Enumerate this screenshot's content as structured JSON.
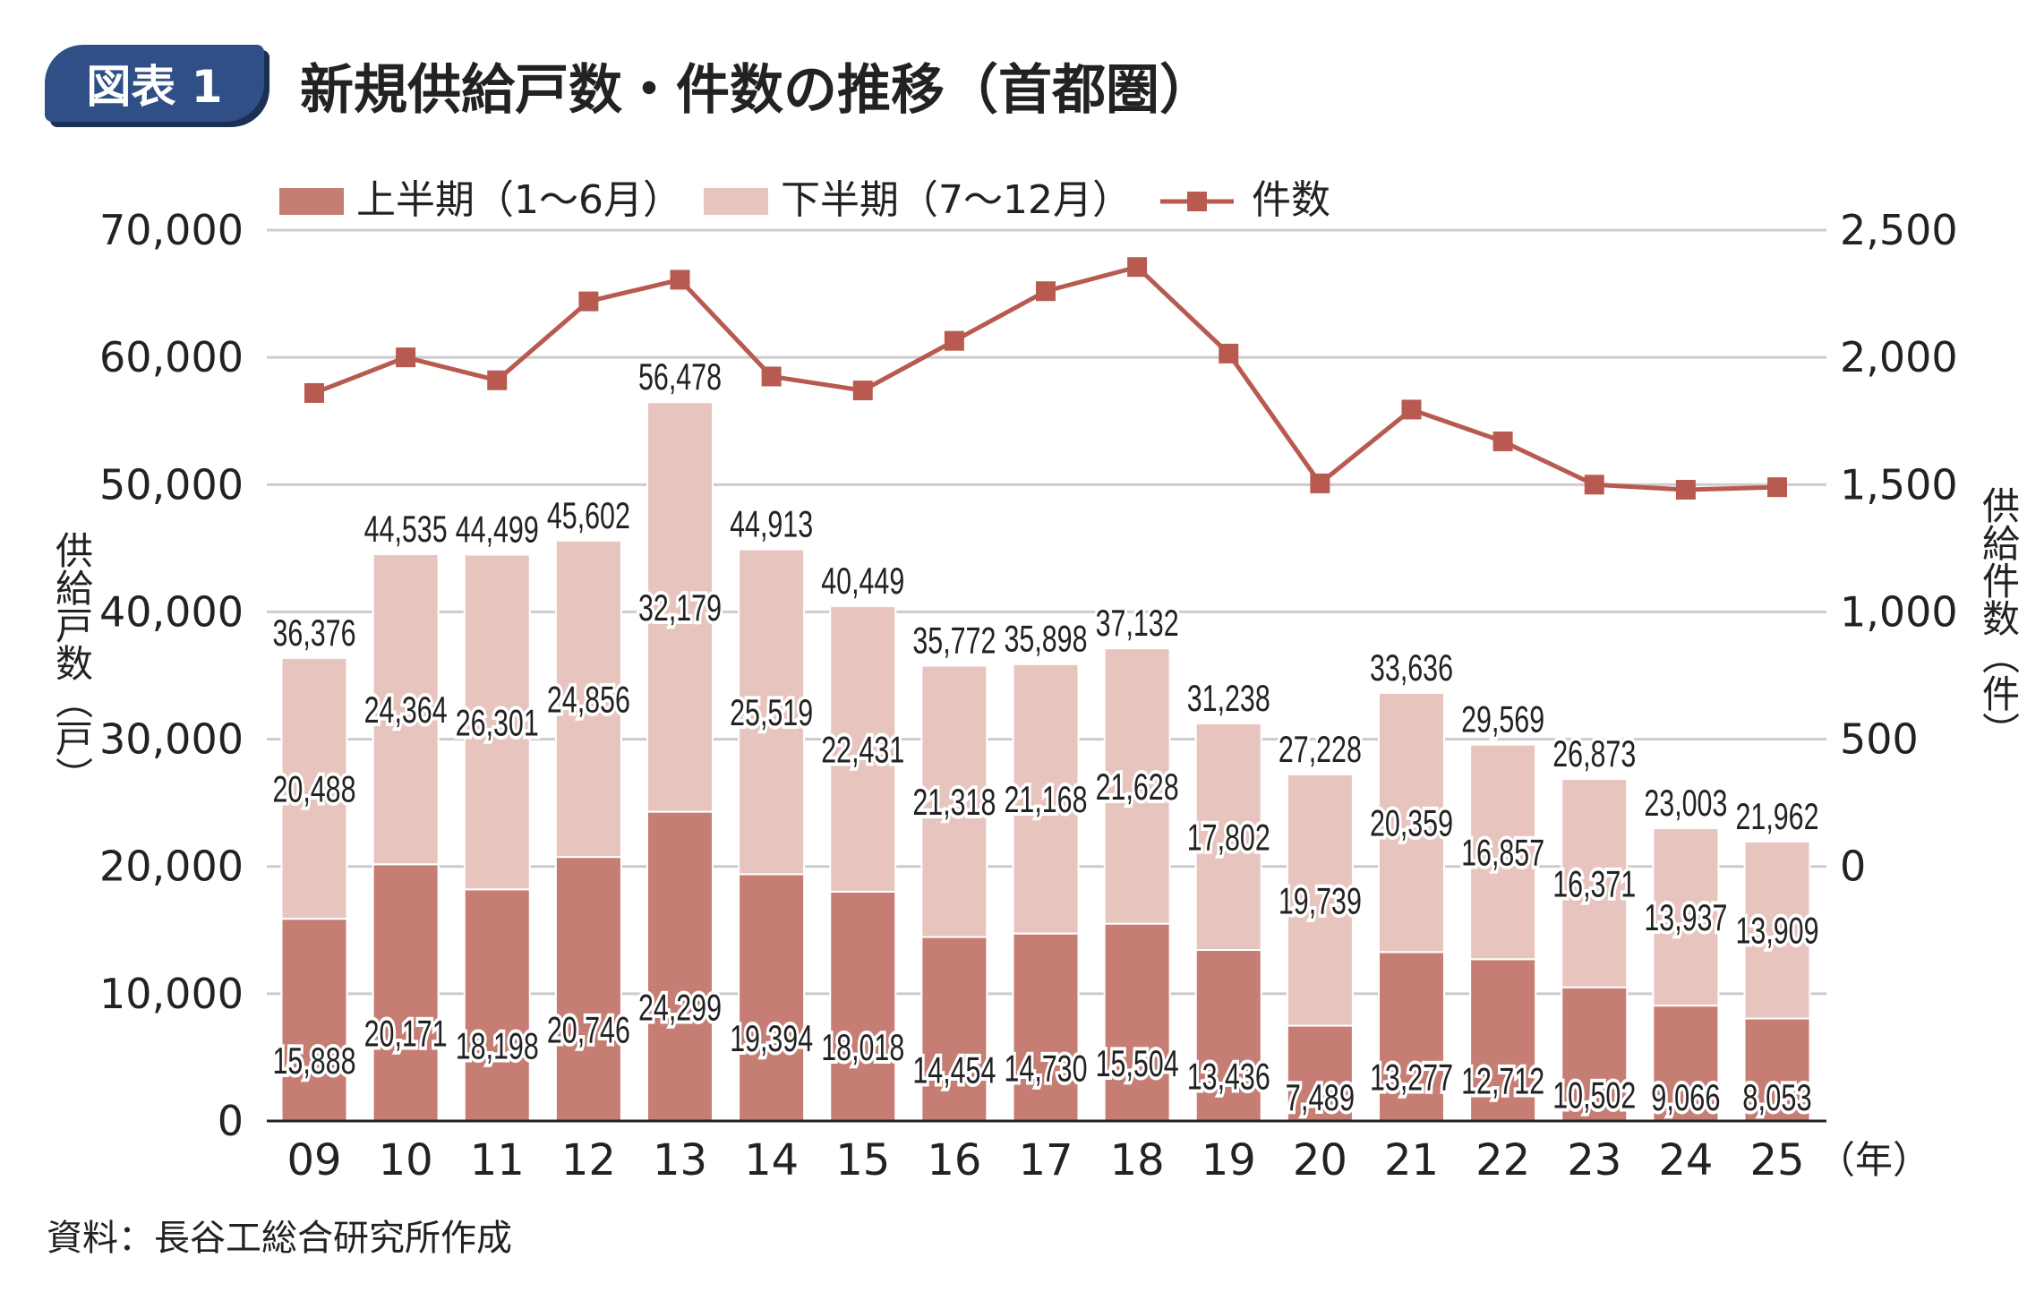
{
  "badge": "図表 1",
  "title": "新規供給戸数・件数の推移（首都圏）",
  "source": "資料：長谷工総合研究所作成",
  "colors": {
    "first_half": "#c67d73",
    "second_half": "#e7c5be",
    "line": "#b85a50",
    "badge": "#2f4f86",
    "grid": "#cccccc"
  },
  "chart_data": {
    "type": "bar",
    "stacked": true,
    "title": "新規供給戸数・件数の推移（首都圏）",
    "categories": [
      "09",
      "10",
      "11",
      "12",
      "13",
      "14",
      "15",
      "16",
      "17",
      "18",
      "19",
      "20",
      "21",
      "22",
      "23",
      "24",
      "25"
    ],
    "x_unit": "（年）",
    "series": [
      {
        "name": "上半期（1～6月）",
        "axis": "left",
        "type": "bar",
        "values": [
          15888,
          20171,
          18198,
          20746,
          24299,
          19394,
          18018,
          14454,
          14730,
          15504,
          13436,
          7489,
          13277,
          12712,
          10502,
          9066,
          8053
        ]
      },
      {
        "name": "下半期（7～12月）",
        "axis": "left",
        "type": "bar",
        "values": [
          20488,
          24364,
          26301,
          24856,
          32179,
          25519,
          22431,
          21318,
          21168,
          21628,
          17802,
          19739,
          20359,
          16857,
          16371,
          13937,
          13909
        ]
      },
      {
        "name": "件数",
        "axis": "right",
        "type": "line",
        "values": [
          1860,
          2000,
          1910,
          2220,
          2305,
          1925,
          1870,
          2065,
          2260,
          2355,
          2015,
          1505,
          1795,
          1670,
          1500,
          1480,
          1490
        ]
      }
    ],
    "totals": [
      36376,
      44535,
      44499,
      45602,
      56478,
      44913,
      40449,
      35772,
      35898,
      37132,
      31238,
      27228,
      33636,
      29569,
      26873,
      23003,
      21962
    ],
    "ylabel_left": "供給戸数（戸）",
    "ylabel_right": "供給件数（件）",
    "ylim_left": [
      0,
      70000
    ],
    "ylim_right": [
      0,
      2500
    ],
    "yticks_left": [
      "0",
      "10,000",
      "20,000",
      "30,000",
      "40,000",
      "50,000",
      "60,000",
      "70,000"
    ],
    "yticks_right": [
      "0",
      "500",
      "1,000",
      "1,500",
      "2,000",
      "2,500"
    ],
    "legend": [
      "上半期（1～6月）",
      "下半期（7～12月）",
      "件数"
    ],
    "legend_position": "top",
    "grid": true
  }
}
